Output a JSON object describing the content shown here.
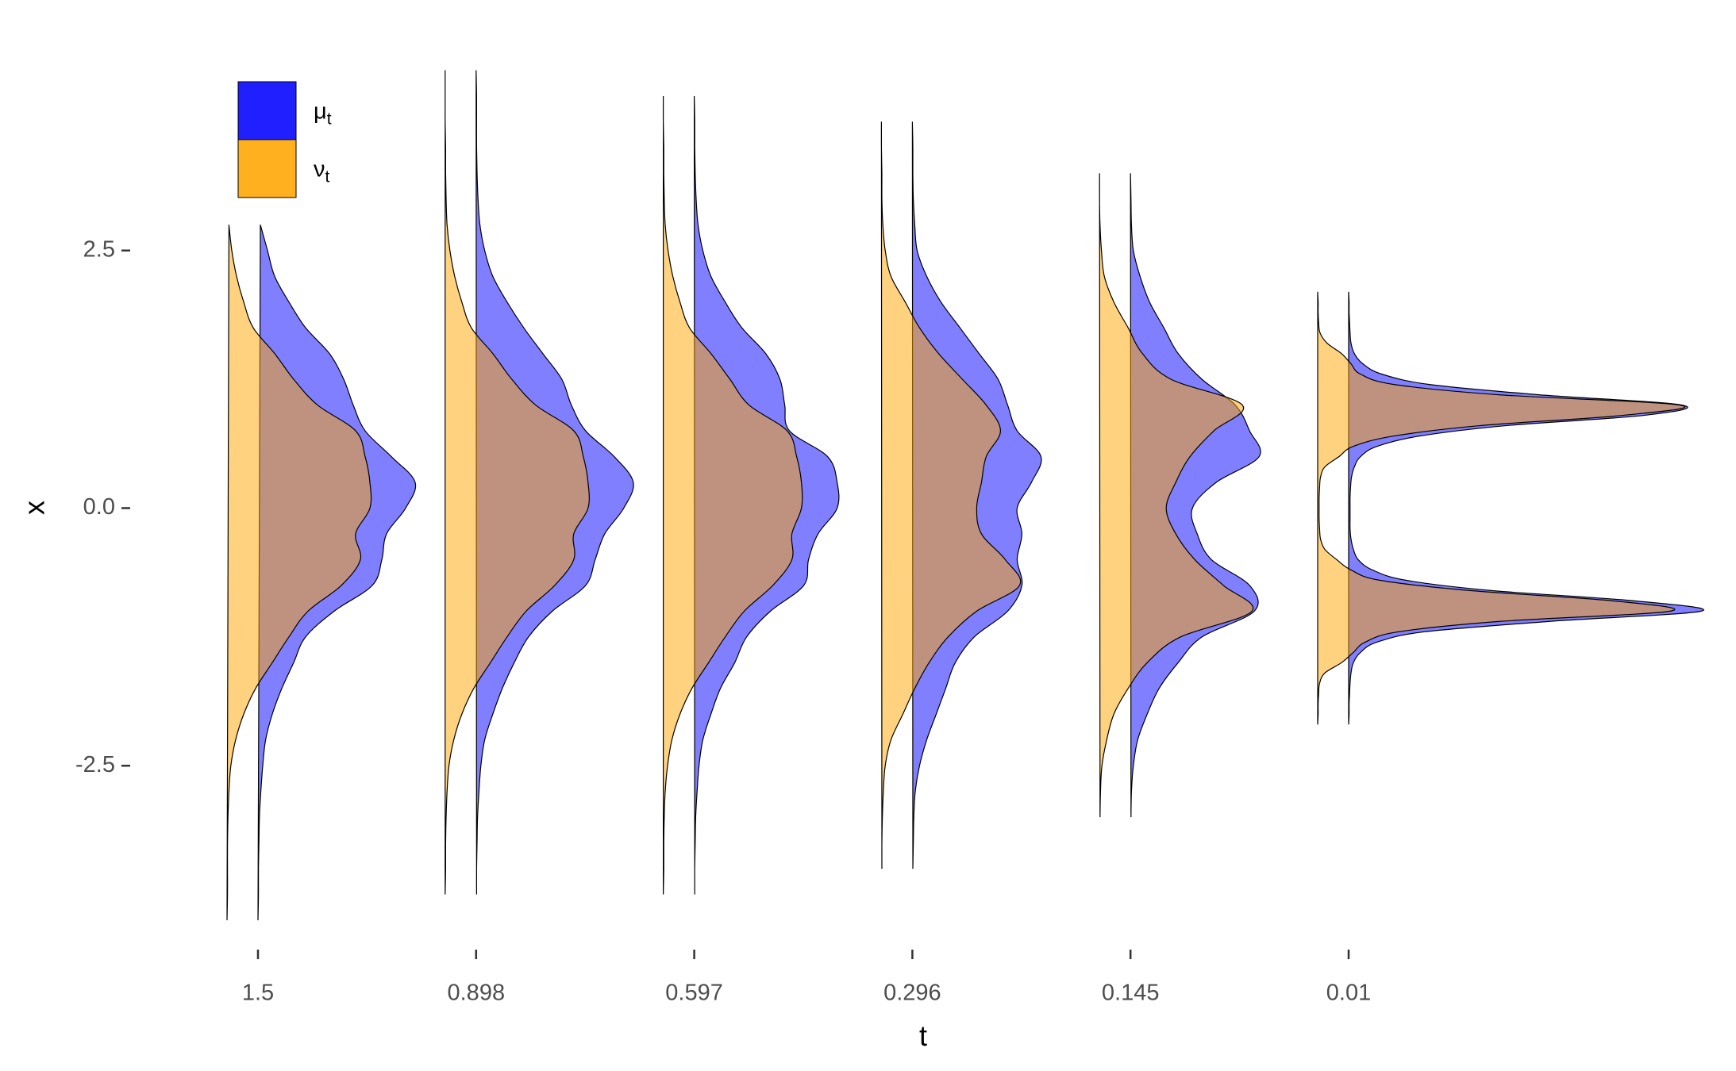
{
  "chart_data": {
    "type": "density_ridges",
    "x_label": "t",
    "y_label": "x",
    "ylim": [
      -4.2,
      4.5
    ],
    "yticks": [
      -2.5,
      {
        "value": 0,
        "label": "0.0"
      },
      2.5
    ],
    "fill_alpha": 0.5,
    "legend": "top-left",
    "series": [
      {
        "name": "μ",
        "subscript": "t",
        "color": "#0000ff"
      },
      {
        "name": "ν",
        "subscript": "t",
        "color": "#ffa500"
      }
    ],
    "groups": [
      {
        "t": "1.5",
        "x": [
          -4,
          -3.75,
          -3.5,
          -3.25,
          -3,
          -2.75,
          -2.5,
          -2.25,
          -2,
          -1.75,
          -1.5,
          -1.25,
          -1,
          -0.75,
          -0.5,
          -0.25,
          0,
          0.25,
          0.5,
          0.75,
          1,
          1.25,
          1.5,
          1.75,
          2,
          2.25,
          2.5,
          2.75
        ],
        "series": [
          {
            "values": [
              0,
              0.001,
              0.001,
              0.002,
              0.003,
              0.006,
              0.01,
              0.016,
              0.03,
              0.05,
              0.075,
              0.1,
              0.16,
              0.24,
              0.26,
              0.27,
              0.31,
              0.33,
              0.28,
              0.225,
              0.2,
              0.18,
              0.15,
              0.1,
              0.065,
              0.035,
              0.02,
              0.005
            ]
          },
          {
            "values": [
              0,
              0.001,
              0.001,
              0.001,
              0.002,
              0.004,
              0.008,
              0.018,
              0.035,
              0.06,
              0.095,
              0.13,
              0.17,
              0.24,
              0.28,
              0.27,
              0.3,
              0.3,
              0.29,
              0.27,
              0.19,
              0.14,
              0.1,
              0.055,
              0.035,
              0.02,
              0.01,
              0.004
            ]
          }
        ]
      },
      {
        "t": "0.898",
        "x": [
          -3.75,
          -3.5,
          -3.25,
          -3,
          -2.75,
          -2.5,
          -2.25,
          -2,
          -1.75,
          -1.5,
          -1.25,
          -1,
          -0.75,
          -0.5,
          -0.25,
          0,
          0.25,
          0.5,
          0.75,
          1,
          1.25,
          1.5,
          1.75,
          2,
          2.25,
          2.5,
          2.75,
          3,
          3.25,
          3.5,
          3.75,
          4,
          4.25
        ],
        "series": [
          {
            "values": [
              0.001,
              0.001,
              0.002,
              0.003,
              0.006,
              0.01,
              0.018,
              0.035,
              0.055,
              0.08,
              0.11,
              0.16,
              0.23,
              0.25,
              0.27,
              0.31,
              0.33,
              0.29,
              0.23,
              0.2,
              0.18,
              0.14,
              0.1,
              0.065,
              0.035,
              0.018,
              0.008,
              0.004,
              0.002,
              0.001,
              0.001,
              0.001,
              0
            ]
          },
          {
            "values": [
              0,
              0.001,
              0.001,
              0.002,
              0.004,
              0.008,
              0.018,
              0.035,
              0.06,
              0.095,
              0.13,
              0.17,
              0.23,
              0.27,
              0.27,
              0.3,
              0.3,
              0.29,
              0.27,
              0.19,
              0.14,
              0.1,
              0.055,
              0.035,
              0.02,
              0.01,
              0.004,
              0.002,
              0.001,
              0.001,
              0,
              0,
              0
            ]
          }
        ]
      },
      {
        "t": "0.597",
        "x": [
          -3.75,
          -3.5,
          -3.25,
          -3,
          -2.75,
          -2.5,
          -2.25,
          -2,
          -1.75,
          -1.5,
          -1.25,
          -1,
          -0.75,
          -0.5,
          -0.25,
          0,
          0.25,
          0.5,
          0.75,
          1,
          1.25,
          1.5,
          1.75,
          2,
          2.25,
          2.5,
          2.75,
          3,
          3.25,
          3.5,
          3.75,
          4
        ],
        "series": [
          {
            "values": [
              0.001,
              0.001,
              0.002,
              0.003,
              0.006,
              0.01,
              0.018,
              0.035,
              0.055,
              0.085,
              0.11,
              0.16,
              0.23,
              0.24,
              0.26,
              0.3,
              0.3,
              0.28,
              0.2,
              0.19,
              0.18,
              0.15,
              0.1,
              0.065,
              0.035,
              0.018,
              0.008,
              0.004,
              0.002,
              0.001,
              0.001,
              0
            ]
          },
          {
            "values": [
              0,
              0.001,
              0.001,
              0.002,
              0.004,
              0.009,
              0.018,
              0.035,
              0.06,
              0.095,
              0.13,
              0.17,
              0.23,
              0.27,
              0.27,
              0.29,
              0.29,
              0.28,
              0.26,
              0.18,
              0.14,
              0.1,
              0.055,
              0.035,
              0.02,
              0.01,
              0.004,
              0.002,
              0.001,
              0.001,
              0,
              0
            ]
          }
        ]
      },
      {
        "t": "0.296",
        "x": [
          -3.5,
          -3.25,
          -3,
          -2.75,
          -2.5,
          -2.25,
          -2,
          -1.75,
          -1.5,
          -1.25,
          -1,
          -0.75,
          -0.5,
          -0.25,
          0,
          0.25,
          0.5,
          0.75,
          1,
          1.25,
          1.5,
          1.75,
          2,
          2.25,
          2.5,
          2.75,
          3,
          3.25,
          3.5,
          3.75
        ],
        "series": [
          {
            "values": [
              0.001,
              0.002,
              0.003,
              0.006,
              0.015,
              0.03,
              0.05,
              0.07,
              0.09,
              0.13,
              0.2,
              0.23,
              0.22,
              0.23,
              0.22,
              0.25,
              0.27,
              0.22,
              0.2,
              0.18,
              0.14,
              0.1,
              0.06,
              0.03,
              0.01,
              0.005,
              0.002,
              0.001,
              0.001,
              0
            ]
          },
          {
            "values": [
              0.001,
              0.001,
              0.002,
              0.004,
              0.008,
              0.02,
              0.045,
              0.07,
              0.1,
              0.14,
              0.2,
              0.29,
              0.26,
              0.21,
              0.2,
              0.21,
              0.22,
              0.25,
              0.22,
              0.17,
              0.12,
              0.08,
              0.05,
              0.02,
              0.008,
              0.003,
              0.001,
              0.001,
              0,
              0
            ]
          }
        ]
      },
      {
        "t": "0.145",
        "x": [
          -3,
          -2.75,
          -2.5,
          -2.25,
          -2,
          -1.75,
          -1.5,
          -1.25,
          -1,
          -0.75,
          -0.5,
          -0.25,
          0,
          0.25,
          0.5,
          0.75,
          1,
          1.25,
          1.5,
          1.75,
          2,
          2.25,
          2.5,
          2.75,
          3,
          3.25
        ],
        "series": [
          {
            "values": [
              0.001,
              0.002,
              0.006,
              0.015,
              0.035,
              0.06,
              0.1,
              0.15,
              0.26,
              0.25,
              0.17,
              0.14,
              0.13,
              0.18,
              0.27,
              0.25,
              0.22,
              0.15,
              0.1,
              0.07,
              0.04,
              0.02,
              0.006,
              0.002,
              0.001,
              0
            ]
          },
          {
            "values": [
              0.001,
              0.002,
              0.005,
              0.015,
              0.03,
              0.06,
              0.1,
              0.17,
              0.32,
              0.26,
              0.2,
              0.16,
              0.14,
              0.16,
              0.19,
              0.24,
              0.3,
              0.15,
              0.09,
              0.06,
              0.03,
              0.01,
              0.004,
              0.001,
              0,
              0
            ]
          }
        ]
      },
      {
        "t": "0.01",
        "x": [
          -2.1,
          -2,
          -1.9,
          -1.8,
          -1.7,
          -1.6,
          -1.5,
          -1.4,
          -1.3,
          -1.2,
          -1.1,
          -1,
          -0.9,
          -0.8,
          -0.7,
          -0.6,
          -0.5,
          -0.4,
          -0.3,
          -0.2,
          -0.1,
          0,
          0.1,
          0.2,
          0.3,
          0.4,
          0.5,
          0.6,
          0.7,
          0.8,
          0.9,
          1,
          1.1,
          1.2,
          1.3,
          1.4,
          1.5,
          1.6,
          1.7,
          1.8,
          1.9,
          2,
          2.1
        ],
        "series": [
          {
            "values": [
              0,
              0.001,
              0.001,
              0.002,
              0.003,
              0.005,
              0.01,
              0.025,
              0.06,
              0.16,
              0.42,
              0.74,
              0.6,
              0.3,
              0.12,
              0.05,
              0.02,
              0.01,
              0.005,
              0.003,
              0.003,
              0.003,
              0.003,
              0.004,
              0.006,
              0.012,
              0.025,
              0.06,
              0.15,
              0.33,
              0.62,
              0.7,
              0.4,
              0.17,
              0.07,
              0.03,
              0.012,
              0.005,
              0.003,
              0.002,
              0.001,
              0.001,
              0
            ]
          },
          {
            "values": [
              0,
              0.001,
              0.001,
              0.002,
              0.004,
              0.015,
              0.05,
              0.075,
              0.1,
              0.17,
              0.38,
              0.74,
              0.62,
              0.32,
              0.13,
              0.07,
              0.04,
              0.015,
              0.006,
              0.004,
              0.003,
              0.003,
              0.003,
              0.004,
              0.006,
              0.015,
              0.045,
              0.075,
              0.16,
              0.34,
              0.64,
              0.76,
              0.38,
              0.16,
              0.09,
              0.07,
              0.05,
              0.02,
              0.005,
              0.002,
              0.001,
              0.001,
              0
            ]
          }
        ]
      }
    ]
  }
}
